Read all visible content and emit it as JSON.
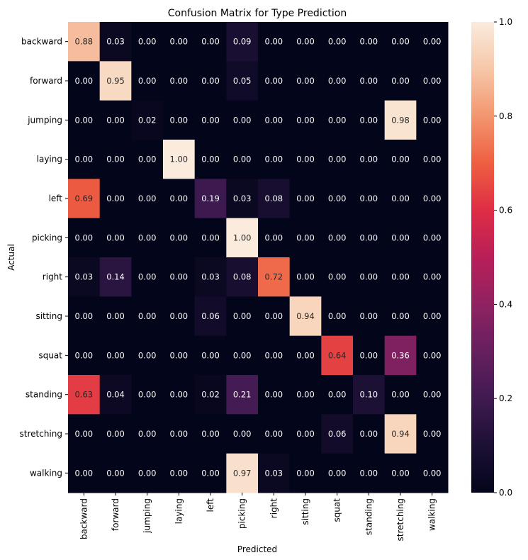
{
  "chart_data": {
    "type": "heatmap",
    "title": "Confusion Matrix for Type Prediction",
    "xlabel": "Predicted",
    "ylabel": "Actual",
    "x_categories": [
      "backward",
      "forward",
      "jumping",
      "laying",
      "left",
      "picking",
      "right",
      "sitting",
      "squat",
      "standing",
      "stretching",
      "walking"
    ],
    "y_categories": [
      "backward",
      "forward",
      "jumping",
      "laying",
      "left",
      "picking",
      "right",
      "sitting",
      "squat",
      "standing",
      "stretching",
      "walking"
    ],
    "values": [
      [
        0.88,
        0.03,
        0.0,
        0.0,
        0.0,
        0.09,
        0.0,
        0.0,
        0.0,
        0.0,
        0.0,
        0.0
      ],
      [
        0.0,
        0.95,
        0.0,
        0.0,
        0.0,
        0.05,
        0.0,
        0.0,
        0.0,
        0.0,
        0.0,
        0.0
      ],
      [
        0.0,
        0.0,
        0.02,
        0.0,
        0.0,
        0.0,
        0.0,
        0.0,
        0.0,
        0.0,
        0.98,
        0.0
      ],
      [
        0.0,
        0.0,
        0.0,
        1.0,
        0.0,
        0.0,
        0.0,
        0.0,
        0.0,
        0.0,
        0.0,
        0.0
      ],
      [
        0.69,
        0.0,
        0.0,
        0.0,
        0.19,
        0.03,
        0.08,
        0.0,
        0.0,
        0.0,
        0.0,
        0.0
      ],
      [
        0.0,
        0.0,
        0.0,
        0.0,
        0.0,
        1.0,
        0.0,
        0.0,
        0.0,
        0.0,
        0.0,
        0.0
      ],
      [
        0.03,
        0.14,
        0.0,
        0.0,
        0.03,
        0.08,
        0.72,
        0.0,
        0.0,
        0.0,
        0.0,
        0.0
      ],
      [
        0.0,
        0.0,
        0.0,
        0.0,
        0.06,
        0.0,
        0.0,
        0.94,
        0.0,
        0.0,
        0.0,
        0.0
      ],
      [
        0.0,
        0.0,
        0.0,
        0.0,
        0.0,
        0.0,
        0.0,
        0.0,
        0.64,
        0.0,
        0.36,
        0.0
      ],
      [
        0.63,
        0.04,
        0.0,
        0.0,
        0.02,
        0.21,
        0.0,
        0.0,
        0.0,
        0.1,
        0.0,
        0.0
      ],
      [
        0.0,
        0.0,
        0.0,
        0.0,
        0.0,
        0.0,
        0.0,
        0.0,
        0.06,
        0.0,
        0.94,
        0.0
      ],
      [
        0.0,
        0.0,
        0.0,
        0.0,
        0.0,
        0.97,
        0.03,
        0.0,
        0.0,
        0.0,
        0.0,
        0.0
      ]
    ],
    "value_format": "0.00",
    "colormap": "rocket",
    "colorbar": {
      "range": [
        0.0,
        1.0
      ],
      "ticks": [
        0.0,
        0.2,
        0.4,
        0.6,
        0.8,
        1.0
      ],
      "tick_labels": [
        "0.0",
        "0.2",
        "0.4",
        "0.6",
        "0.8",
        "1.0"
      ]
    },
    "annotation_colors": {
      "light_text": "#ffffff",
      "dark_text": "#262626",
      "threshold": 0.5
    }
  }
}
